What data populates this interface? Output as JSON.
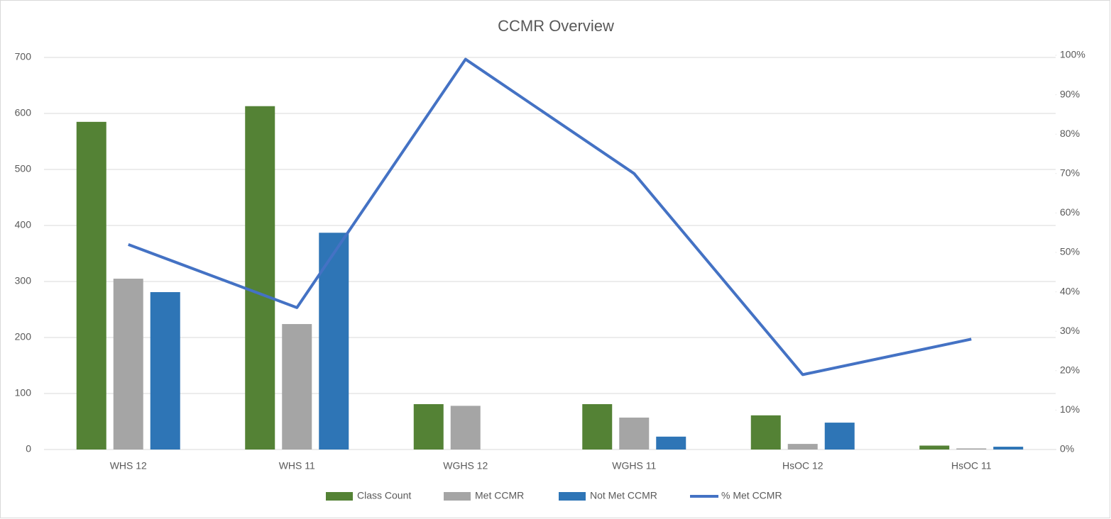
{
  "chart_data": {
    "type": "bar",
    "title": "CCMR Overview",
    "categories": [
      "WHS 12",
      "WHS 11",
      "WGHS 12",
      "WGHS 11",
      "HsOC 12",
      "HsOC 11"
    ],
    "series": [
      {
        "name": "Class Count",
        "color": "#548235",
        "values": [
          585,
          613,
          81,
          81,
          61,
          7
        ]
      },
      {
        "name": "Met CCMR",
        "color": "#a5a5a5",
        "values": [
          305,
          224,
          78,
          57,
          10,
          2
        ]
      },
      {
        "name": "Not Met CCMR",
        "color": "#2e75b6",
        "values": [
          281,
          387,
          0,
          23,
          48,
          5
        ]
      },
      {
        "name": "% Met CCMR",
        "color": "#4472c4",
        "type": "line",
        "axis": "y2",
        "values": [
          52,
          36,
          99,
          70,
          19,
          28
        ]
      }
    ],
    "ylim": [
      0,
      700
    ],
    "yticks": [
      0,
      100,
      200,
      300,
      400,
      500,
      600,
      700
    ],
    "y2lim": [
      0,
      100
    ],
    "y2ticks": [
      {
        "value": 0,
        "label": "0%"
      },
      {
        "value": 10,
        "label": "10%"
      },
      {
        "value": 20,
        "label": "20%"
      },
      {
        "value": 30,
        "label": "30%"
      },
      {
        "value": 40,
        "label": "40%"
      },
      {
        "value": 50,
        "label": "50%"
      },
      {
        "value": 60,
        "label": "60%"
      },
      {
        "value": 70,
        "label": "70%"
      },
      {
        "value": 80,
        "label": "80%"
      },
      {
        "value": 90,
        "label": "90%"
      },
      {
        "value": 100,
        "label": "100%"
      }
    ],
    "grid": true,
    "legend": "bottom"
  }
}
